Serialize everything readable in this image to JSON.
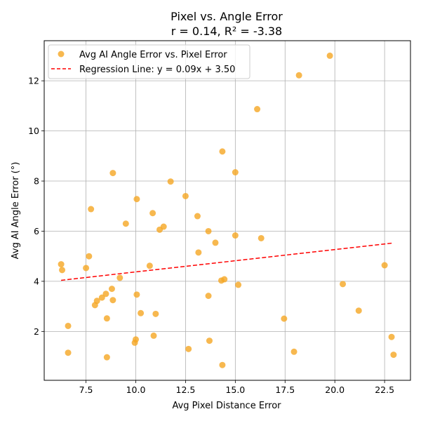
{
  "chart_data": {
    "type": "scatter",
    "title": "Pixel vs. Angle Error",
    "subtitle": "r = 0.14, R² = -3.38",
    "xlabel": "Avg Pixel Distance Error",
    "ylabel": "Avg AI Angle Error (°)",
    "xlim": [
      5.4,
      23.8
    ],
    "ylim": [
      0.05,
      13.6
    ],
    "xticks": [
      7.5,
      10.0,
      12.5,
      15.0,
      17.5,
      20.0,
      22.5
    ],
    "xtick_labels": [
      "7.5",
      "10.0",
      "12.5",
      "15.0",
      "17.5",
      "20.0",
      "22.5"
    ],
    "yticks": [
      2,
      4,
      6,
      8,
      10,
      12
    ],
    "ytick_labels": [
      "2",
      "4",
      "6",
      "8",
      "10",
      "12"
    ],
    "grid": true,
    "legend_position": "top-left",
    "series": [
      {
        "name": "Avg AI Angle Error vs. Pixel Error",
        "kind": "scatter",
        "color": "#f5a623",
        "points": [
          {
            "x": 6.25,
            "y": 4.68
          },
          {
            "x": 6.3,
            "y": 4.45
          },
          {
            "x": 6.6,
            "y": 2.22
          },
          {
            "x": 6.6,
            "y": 1.15
          },
          {
            "x": 7.5,
            "y": 4.53
          },
          {
            "x": 7.65,
            "y": 5.0
          },
          {
            "x": 7.75,
            "y": 6.88
          },
          {
            "x": 7.95,
            "y": 3.05
          },
          {
            "x": 8.05,
            "y": 3.22
          },
          {
            "x": 8.3,
            "y": 3.35
          },
          {
            "x": 8.5,
            "y": 3.5
          },
          {
            "x": 8.55,
            "y": 2.52
          },
          {
            "x": 8.55,
            "y": 0.97
          },
          {
            "x": 8.8,
            "y": 3.7
          },
          {
            "x": 8.85,
            "y": 3.25
          },
          {
            "x": 8.85,
            "y": 8.32
          },
          {
            "x": 9.2,
            "y": 4.14
          },
          {
            "x": 9.5,
            "y": 6.3
          },
          {
            "x": 9.95,
            "y": 1.55
          },
          {
            "x": 10.0,
            "y": 1.68
          },
          {
            "x": 10.05,
            "y": 3.47
          },
          {
            "x": 10.05,
            "y": 7.28
          },
          {
            "x": 10.25,
            "y": 2.73
          },
          {
            "x": 10.7,
            "y": 4.62
          },
          {
            "x": 10.85,
            "y": 6.72
          },
          {
            "x": 10.9,
            "y": 1.83
          },
          {
            "x": 11.0,
            "y": 2.7
          },
          {
            "x": 11.2,
            "y": 6.06
          },
          {
            "x": 11.4,
            "y": 6.18
          },
          {
            "x": 11.75,
            "y": 7.98
          },
          {
            "x": 12.5,
            "y": 7.4
          },
          {
            "x": 12.65,
            "y": 1.3
          },
          {
            "x": 13.1,
            "y": 6.6
          },
          {
            "x": 13.15,
            "y": 5.15
          },
          {
            "x": 13.65,
            "y": 6.0
          },
          {
            "x": 13.65,
            "y": 3.42
          },
          {
            "x": 13.7,
            "y": 1.63
          },
          {
            "x": 14.0,
            "y": 5.54
          },
          {
            "x": 14.3,
            "y": 4.03
          },
          {
            "x": 14.35,
            "y": 0.66
          },
          {
            "x": 14.35,
            "y": 9.18
          },
          {
            "x": 14.45,
            "y": 4.08
          },
          {
            "x": 15.0,
            "y": 8.35
          },
          {
            "x": 15.0,
            "y": 5.83
          },
          {
            "x": 15.15,
            "y": 3.86
          },
          {
            "x": 16.1,
            "y": 10.87
          },
          {
            "x": 16.3,
            "y": 5.72
          },
          {
            "x": 17.45,
            "y": 2.51
          },
          {
            "x": 17.95,
            "y": 1.19
          },
          {
            "x": 18.2,
            "y": 12.22
          },
          {
            "x": 19.75,
            "y": 13.0
          },
          {
            "x": 20.4,
            "y": 3.89
          },
          {
            "x": 21.2,
            "y": 2.83
          },
          {
            "x": 22.5,
            "y": 4.64
          },
          {
            "x": 22.85,
            "y": 1.78
          },
          {
            "x": 22.95,
            "y": 1.07
          }
        ]
      },
      {
        "name": "Regression Line: y = 0.09x + 3.50",
        "kind": "line",
        "color": "#ff0000",
        "dash": "dashed",
        "x": [
          6.25,
          22.95
        ],
        "y": [
          4.04,
          5.53
        ]
      }
    ]
  }
}
